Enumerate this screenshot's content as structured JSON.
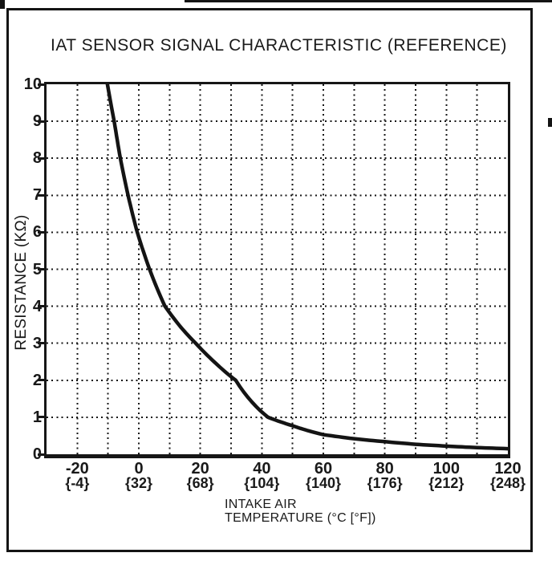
{
  "title": "IAT SENSOR SIGNAL CHARACTERISTIC (REFERENCE)",
  "y_axis": {
    "label": "RESISTANCE (KΩ)",
    "ticks": [
      10,
      9,
      8,
      7,
      6,
      5,
      4,
      3,
      2,
      1,
      0
    ],
    "min": 0,
    "max": 10,
    "grid_step_kohm": 1
  },
  "x_axis": {
    "label_line1": "INTAKE AIR",
    "label_line2": "TEMPERATURE (°C [°F])",
    "min": -30,
    "max": 120,
    "grid_step_c": 10,
    "grid_from": -20,
    "grid_to": 110,
    "ticks": [
      {
        "celsius": "-20",
        "fahrenheit": "{-4}"
      },
      {
        "celsius": "0",
        "fahrenheit": "{32}"
      },
      {
        "celsius": "20",
        "fahrenheit": "{68}"
      },
      {
        "celsius": "40",
        "fahrenheit": "{104}"
      },
      {
        "celsius": "60",
        "fahrenheit": "{140}"
      },
      {
        "celsius": "80",
        "fahrenheit": "{176}"
      },
      {
        "celsius": "100",
        "fahrenheit": "{212}"
      },
      {
        "celsius": "120",
        "fahrenheit": "{248}"
      }
    ]
  },
  "chart_data": {
    "type": "line",
    "title": "IAT SENSOR SIGNAL CHARACTERISTIC (REFERENCE)",
    "xlabel": "INTAKE AIR TEMPERATURE (°C [°F])",
    "ylabel": "RESISTANCE (KΩ)",
    "xlim": [
      -30,
      120
    ],
    "ylim": [
      0,
      10
    ],
    "grid": "dotted both axes",
    "legend": "none",
    "line_color": "#141414",
    "series": [
      {
        "name": "IAT sensor resistance vs intake air temperature",
        "x_temperature_c": [
          -10.5,
          -8,
          -6,
          -3.5,
          -0.5,
          3.5,
          8.5,
          13.5,
          18.5,
          24.5,
          31.5,
          42,
          50,
          60,
          70,
          80,
          90,
          100,
          110,
          120
        ],
        "y_resistance_kohm": [
          10.15,
          9.0,
          8.0,
          7.0,
          6.0,
          5.0,
          4.0,
          3.45,
          3.0,
          2.5,
          2.0,
          1.0,
          0.77,
          0.53,
          0.42,
          0.34,
          0.27,
          0.22,
          0.18,
          0.15
        ]
      }
    ]
  },
  "colors": {
    "ink": "#161616",
    "background": "#ffffff"
  }
}
